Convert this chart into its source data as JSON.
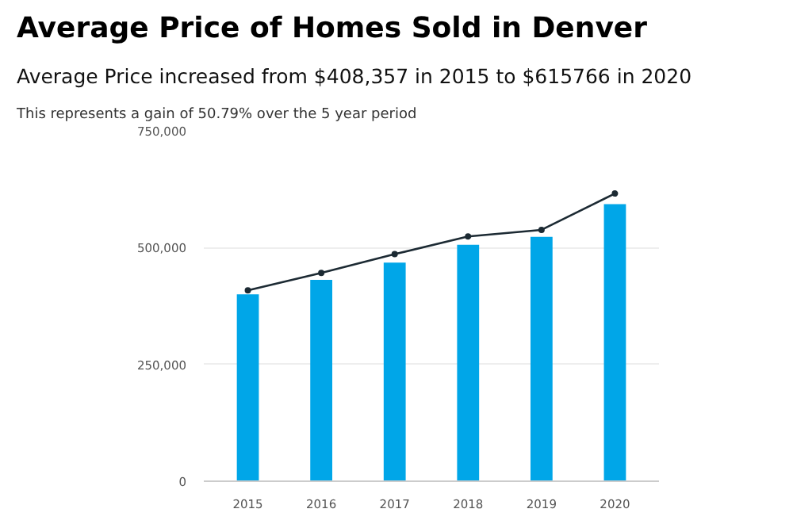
{
  "chart_data": {
    "type": "bar",
    "title": "Average Price of Homes Sold in Denver",
    "subtitle": "Average Price increased from $408,357 in 2015 to $615766 in 2020",
    "annotations": [
      "This represents a gain of 50.79% over the 5 year period"
    ],
    "categories": [
      "2015",
      "2016",
      "2017",
      "2018",
      "2019",
      "2020"
    ],
    "series": [
      {
        "color": "#00a6e8",
        "values": [
          400000,
          431000,
          468000,
          506000,
          523000,
          593000
        ]
      },
      {
        "type": "line",
        "color": "#1c2a33",
        "values": [
          408357,
          446000,
          486000,
          524000,
          538000,
          615766
        ]
      }
    ],
    "ylim": [
      0,
      750000
    ],
    "yticks": [
      {
        "value": 0,
        "label": "0"
      },
      {
        "value": 250000,
        "label": "250,000"
      },
      {
        "value": 500000,
        "label": "500,000"
      },
      {
        "value": 750000,
        "label": "750,000"
      }
    ],
    "grid": "y",
    "marker": "circle",
    "line_style": "solid"
  }
}
